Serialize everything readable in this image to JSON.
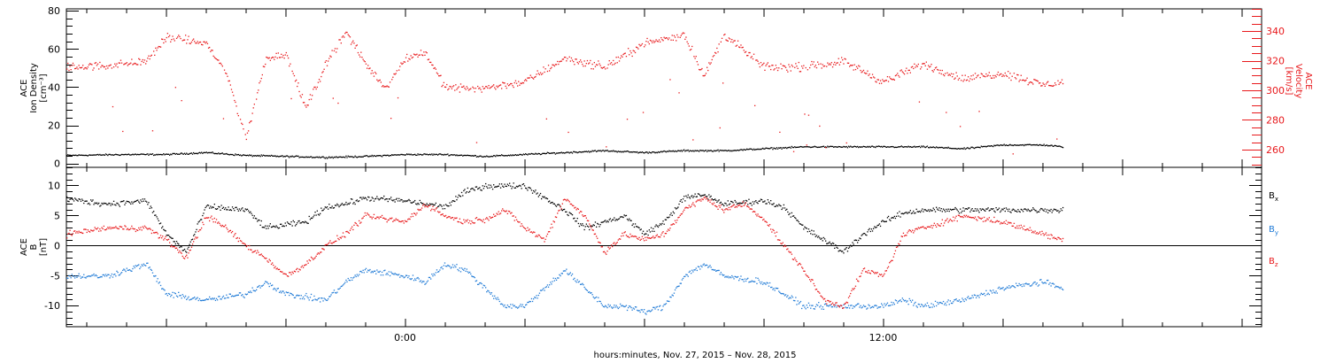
{
  "colors": {
    "black": "#000000",
    "red": "#e8191c",
    "blue": "#1f7ad6"
  },
  "xlabel": "hours:minutes, Nov. 27, 2015 – Nov. 28, 2015",
  "chart_data": [
    {
      "type": "scatter",
      "panel": "top",
      "xlim": [
        -8.5,
        21.5
      ],
      "x_units": "hours relative to 00:00 Nov. 28, 2015",
      "ylabel_left": [
        "ACE",
        "Ion Density",
        "[cm⁻³]"
      ],
      "ylabel_right": [
        "ACE",
        "Velocity",
        "[km/s]"
      ],
      "ylim_left": [
        -2,
        81
      ],
      "ylim_right": [
        248,
        355
      ],
      "left_ticks": [
        0,
        20,
        40,
        60,
        80
      ],
      "right_ticks": [
        260,
        280,
        300,
        320,
        340
      ],
      "x_ticks": [
        {
          "x": 0,
          "label": "0:00"
        },
        {
          "x": 12,
          "label": "12:00"
        }
      ],
      "series": [
        {
          "axis": "left",
          "color": "black",
          "points": [
            [
              -8.5,
              4.5
            ],
            [
              -7,
              5
            ],
            [
              -6,
              5
            ],
            [
              -5,
              6
            ],
            [
              -4,
              4.5
            ],
            [
              -3,
              4
            ],
            [
              -2,
              3.5
            ],
            [
              -1,
              4
            ],
            [
              0,
              5
            ],
            [
              1,
              5
            ],
            [
              2,
              4
            ],
            [
              3,
              5
            ],
            [
              4,
              6
            ],
            [
              5,
              7
            ],
            [
              6,
              6
            ],
            [
              7,
              7
            ],
            [
              8,
              7
            ],
            [
              9,
              8
            ],
            [
              10,
              9
            ],
            [
              11,
              9
            ],
            [
              12,
              9
            ],
            [
              13,
              9
            ],
            [
              14,
              8
            ],
            [
              15,
              10
            ],
            [
              16,
              10
            ],
            [
              16.5,
              9
            ]
          ]
        },
        {
          "axis": "right",
          "color": "red",
          "points": [
            [
              -8.5,
              316
            ],
            [
              -7.5,
              317
            ],
            [
              -6.5,
              320
            ],
            [
              -6,
              336
            ],
            [
              -5,
              332
            ],
            [
              -4.5,
              312
            ],
            [
              -4,
              268
            ],
            [
              -3.5,
              322
            ],
            [
              -3,
              325
            ],
            [
              -2.5,
              288
            ],
            [
              -2,
              318
            ],
            [
              -1.5,
              340
            ],
            [
              -1,
              318
            ],
            [
              -0.5,
              302
            ],
            [
              0,
              322
            ],
            [
              0.5,
              326
            ],
            [
              1,
              302
            ],
            [
              2,
              302
            ],
            [
              3,
              306
            ],
            [
              4,
              322
            ],
            [
              5,
              316
            ],
            [
              6,
              332
            ],
            [
              7,
              338
            ],
            [
              7.5,
              310
            ],
            [
              8,
              338
            ],
            [
              9,
              316
            ],
            [
              10,
              316
            ],
            [
              11,
              320
            ],
            [
              12,
              306
            ],
            [
              13,
              318
            ],
            [
              14,
              308
            ],
            [
              15,
              312
            ],
            [
              16,
              304
            ],
            [
              16.5,
              306
            ]
          ]
        }
      ]
    },
    {
      "type": "scatter",
      "panel": "bottom",
      "xlim": [
        -8.5,
        21.5
      ],
      "x_units": "hours relative to 00:00 Nov. 28, 2015",
      "ylabel_left": [
        "ACE",
        "B",
        "[nT]"
      ],
      "ylim": [
        -13.5,
        13
      ],
      "y_ticks": [
        -10,
        -5,
        0,
        5,
        10
      ],
      "x_ticks": [
        {
          "x": 0,
          "label": "0:00"
        },
        {
          "x": 12,
          "label": "12:00"
        }
      ],
      "legend": [
        {
          "base": "B",
          "sub": "x",
          "color": "black"
        },
        {
          "base": "B",
          "sub": "y",
          "color": "blue"
        },
        {
          "base": "B",
          "sub": "z",
          "color": "red"
        }
      ],
      "series": [
        {
          "legend_index": 0,
          "color": "black",
          "points": [
            [
              -8.5,
              7.8
            ],
            [
              -7.5,
              7
            ],
            [
              -6.5,
              7.5
            ],
            [
              -6,
              2
            ],
            [
              -5.5,
              -1
            ],
            [
              -5,
              6.5
            ],
            [
              -4,
              6
            ],
            [
              -3.5,
              3
            ],
            [
              -2.5,
              4
            ],
            [
              -2,
              6.5
            ],
            [
              -1.5,
              7
            ],
            [
              -1,
              8
            ],
            [
              0,
              7.5
            ],
            [
              1,
              6.5
            ],
            [
              1.5,
              9
            ],
            [
              2,
              10
            ],
            [
              3,
              10
            ],
            [
              3.5,
              8
            ],
            [
              4,
              6
            ],
            [
              4.5,
              3
            ],
            [
              5,
              4
            ],
            [
              5.5,
              5
            ],
            [
              6,
              2
            ],
            [
              6.5,
              4
            ],
            [
              7,
              8
            ],
            [
              7.5,
              8.5
            ],
            [
              8,
              7
            ],
            [
              9,
              7.5
            ],
            [
              9.5,
              6.5
            ],
            [
              10,
              3
            ],
            [
              10.5,
              1
            ],
            [
              11,
              -1
            ],
            [
              11.5,
              2
            ],
            [
              12,
              4
            ],
            [
              12.5,
              5.5
            ],
            [
              13,
              6
            ],
            [
              14,
              6
            ],
            [
              15,
              6
            ],
            [
              16,
              6
            ],
            [
              16.5,
              6
            ]
          ]
        },
        {
          "legend_index": 1,
          "color": "blue",
          "points": [
            [
              -8.5,
              -5
            ],
            [
              -7.5,
              -5
            ],
            [
              -6.5,
              -3
            ],
            [
              -6,
              -8
            ],
            [
              -5,
              -9
            ],
            [
              -4,
              -8
            ],
            [
              -3.5,
              -6
            ],
            [
              -3,
              -8
            ],
            [
              -2,
              -9
            ],
            [
              -1.5,
              -6
            ],
            [
              -1,
              -4
            ],
            [
              0,
              -5
            ],
            [
              0.5,
              -6
            ],
            [
              1,
              -3
            ],
            [
              1.5,
              -4
            ],
            [
              2,
              -7
            ],
            [
              2.5,
              -10
            ],
            [
              3,
              -10
            ],
            [
              4,
              -4
            ],
            [
              4.5,
              -7
            ],
            [
              5,
              -10
            ],
            [
              5.5,
              -10
            ],
            [
              6,
              -11
            ],
            [
              6.5,
              -10
            ],
            [
              7,
              -5
            ],
            [
              7.5,
              -3
            ],
            [
              8,
              -5
            ],
            [
              9,
              -6
            ],
            [
              9.5,
              -8
            ],
            [
              10,
              -10
            ],
            [
              11,
              -10
            ],
            [
              11.5,
              -10
            ],
            [
              12,
              -10
            ],
            [
              12.5,
              -9
            ],
            [
              13,
              -10
            ],
            [
              14,
              -9
            ],
            [
              15,
              -7
            ],
            [
              16,
              -6
            ],
            [
              16.5,
              -7
            ]
          ]
        },
        {
          "legend_index": 2,
          "color": "red",
          "points": [
            [
              -8.5,
              2
            ],
            [
              -7.5,
              3
            ],
            [
              -6.5,
              3
            ],
            [
              -6,
              1
            ],
            [
              -5.5,
              -2
            ],
            [
              -5,
              5
            ],
            [
              -4.5,
              3
            ],
            [
              -4,
              0
            ],
            [
              -3.5,
              -2
            ],
            [
              -3,
              -5
            ],
            [
              -2.5,
              -3
            ],
            [
              -2,
              0
            ],
            [
              -1.5,
              2
            ],
            [
              -1,
              5
            ],
            [
              0,
              4
            ],
            [
              0.5,
              7
            ],
            [
              1,
              5
            ],
            [
              1.5,
              4
            ],
            [
              2,
              4.5
            ],
            [
              2.5,
              6
            ],
            [
              3,
              3
            ],
            [
              3.5,
              1
            ],
            [
              4,
              8
            ],
            [
              4.5,
              5
            ],
            [
              5,
              -1
            ],
            [
              5.5,
              2
            ],
            [
              6,
              1
            ],
            [
              6.5,
              2
            ],
            [
              7,
              6
            ],
            [
              7.5,
              8
            ],
            [
              8,
              6
            ],
            [
              8.5,
              7
            ],
            [
              9,
              4.5
            ],
            [
              9.5,
              0
            ],
            [
              10,
              -4
            ],
            [
              10.5,
              -9
            ],
            [
              11,
              -10
            ],
            [
              11.5,
              -4
            ],
            [
              12,
              -5
            ],
            [
              12.5,
              2
            ],
            [
              13,
              3
            ],
            [
              14,
              5
            ],
            [
              15,
              4
            ],
            [
              16,
              2
            ],
            [
              16.5,
              1
            ]
          ]
        }
      ]
    }
  ]
}
